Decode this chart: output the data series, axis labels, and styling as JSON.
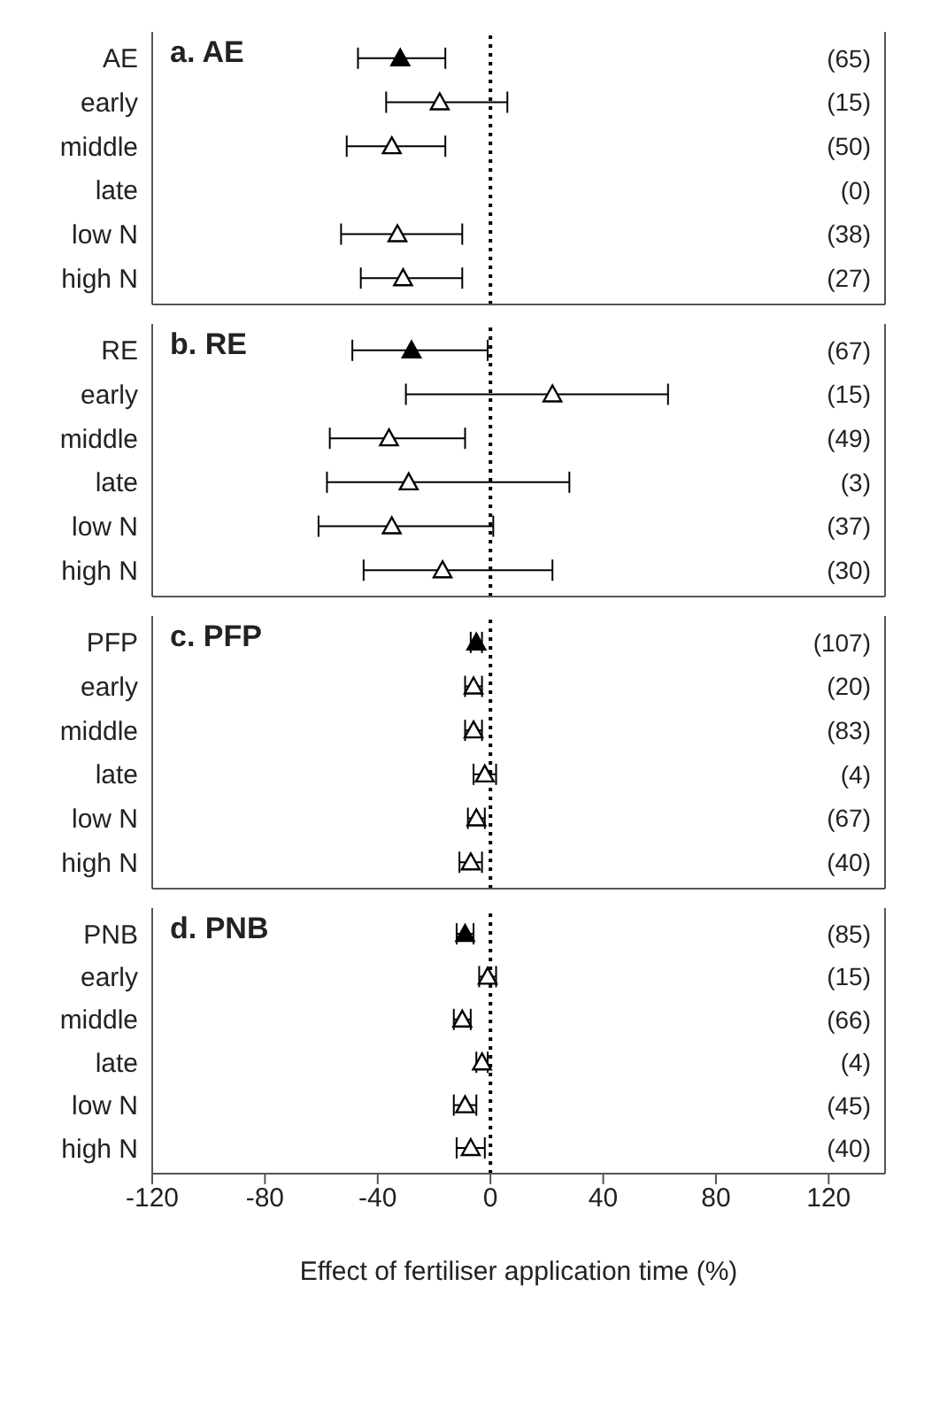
{
  "chart_data": [
    {
      "type": "scatter",
      "title": "a. AE",
      "orientation": "horizontal",
      "categories": [
        "AE",
        "early",
        "middle",
        "late",
        "low N",
        "high N"
      ],
      "marker": "triangle",
      "series": [
        {
          "color": "#000000",
          "values": [
            -32,
            null,
            null,
            null,
            null,
            null
          ],
          "errors": [
            [
              -47,
              -16
            ],
            null,
            null,
            null,
            null,
            null
          ]
        },
        {
          "color": "#ffffff",
          "values": [
            null,
            -18,
            -35,
            null,
            -33,
            -31
          ],
          "errors": [
            null,
            [
              -37,
              6
            ],
            [
              -51,
              -16
            ],
            null,
            [
              -53,
              -10
            ],
            [
              -46,
              -10
            ]
          ]
        }
      ],
      "annotations": [
        "(65)",
        "(15)",
        "(50)",
        "(0)",
        "(38)",
        "(27)"
      ],
      "xlim": [
        -120,
        140
      ],
      "xticks": [
        -120,
        -80,
        -40,
        0,
        40,
        80,
        120
      ],
      "tick_labels": "y",
      "ref_lines": [
        {
          "axis": "x",
          "value": 0,
          "color": "#000000",
          "line_style": "dotted"
        }
      ]
    },
    {
      "type": "scatter",
      "title": "b. RE",
      "orientation": "horizontal",
      "categories": [
        "RE",
        "early",
        "middle",
        "late",
        "low N",
        "high N"
      ],
      "marker": "triangle",
      "series": [
        {
          "color": "#000000",
          "values": [
            -28,
            null,
            null,
            null,
            null,
            null
          ],
          "errors": [
            [
              -49,
              -1
            ],
            null,
            null,
            null,
            null,
            null
          ]
        },
        {
          "color": "#ffffff",
          "values": [
            null,
            22,
            -36,
            -29,
            -35,
            -17
          ],
          "errors": [
            null,
            [
              -30,
              63
            ],
            [
              -57,
              -9
            ],
            [
              -58,
              28
            ],
            [
              -61,
              1
            ],
            [
              -45,
              22
            ]
          ]
        }
      ],
      "annotations": [
        "(67)",
        "(15)",
        "(49)",
        "(3)",
        "(37)",
        "(30)"
      ],
      "xlim": [
        -120,
        140
      ],
      "xticks": [
        -120,
        -80,
        -40,
        0,
        40,
        80,
        120
      ],
      "tick_labels": "y",
      "ref_lines": [
        {
          "axis": "x",
          "value": 0,
          "color": "#000000",
          "line_style": "dotted"
        }
      ]
    },
    {
      "type": "scatter",
      "title": "c. PFP",
      "orientation": "horizontal",
      "categories": [
        "PFP",
        "early",
        "middle",
        "late",
        "low N",
        "high N"
      ],
      "marker": "triangle",
      "series": [
        {
          "color": "#000000",
          "values": [
            -5,
            null,
            null,
            null,
            null,
            null
          ],
          "errors": [
            [
              -7,
              -3
            ],
            null,
            null,
            null,
            null,
            null
          ]
        },
        {
          "color": "#ffffff",
          "values": [
            null,
            -6,
            -6,
            -2,
            -5,
            -7
          ],
          "errors": [
            null,
            [
              -9,
              -3
            ],
            [
              -9,
              -3
            ],
            [
              -6,
              2
            ],
            [
              -8,
              -2
            ],
            [
              -11,
              -3
            ]
          ]
        }
      ],
      "annotations": [
        "(107)",
        "(20)",
        "(83)",
        "(4)",
        "(67)",
        "(40)"
      ],
      "xlim": [
        -120,
        140
      ],
      "xticks": [
        -120,
        -80,
        -40,
        0,
        40,
        80,
        120
      ],
      "tick_labels": "y",
      "ref_lines": [
        {
          "axis": "x",
          "value": 0,
          "color": "#000000",
          "line_style": "dotted"
        }
      ]
    },
    {
      "type": "scatter",
      "title": "d. PNB",
      "orientation": "horizontal",
      "categories": [
        "PNB",
        "early",
        "middle",
        "late",
        "low N",
        "high N"
      ],
      "marker": "triangle",
      "xlabel": "Effect of fertiliser application time (%)",
      "series": [
        {
          "color": "#000000",
          "values": [
            -9,
            null,
            null,
            null,
            null,
            null
          ],
          "errors": [
            [
              -12,
              -6
            ],
            null,
            null,
            null,
            null,
            null
          ]
        },
        {
          "color": "#ffffff",
          "values": [
            null,
            -1,
            -10,
            -3,
            -9,
            -7
          ],
          "errors": [
            null,
            [
              -4,
              2
            ],
            [
              -13,
              -7
            ],
            [
              -5,
              -1
            ],
            [
              -13,
              -5
            ],
            [
              -12,
              -2
            ]
          ]
        }
      ],
      "annotations": [
        "(85)",
        "(15)",
        "(66)",
        "(4)",
        "(45)",
        "(40)"
      ],
      "xlim": [
        -120,
        140
      ],
      "xticks": [
        -120,
        -80,
        -40,
        0,
        40,
        80,
        120
      ],
      "ref_lines": [
        {
          "axis": "x",
          "value": 0,
          "color": "#000000",
          "line_style": "dotted"
        }
      ]
    }
  ]
}
